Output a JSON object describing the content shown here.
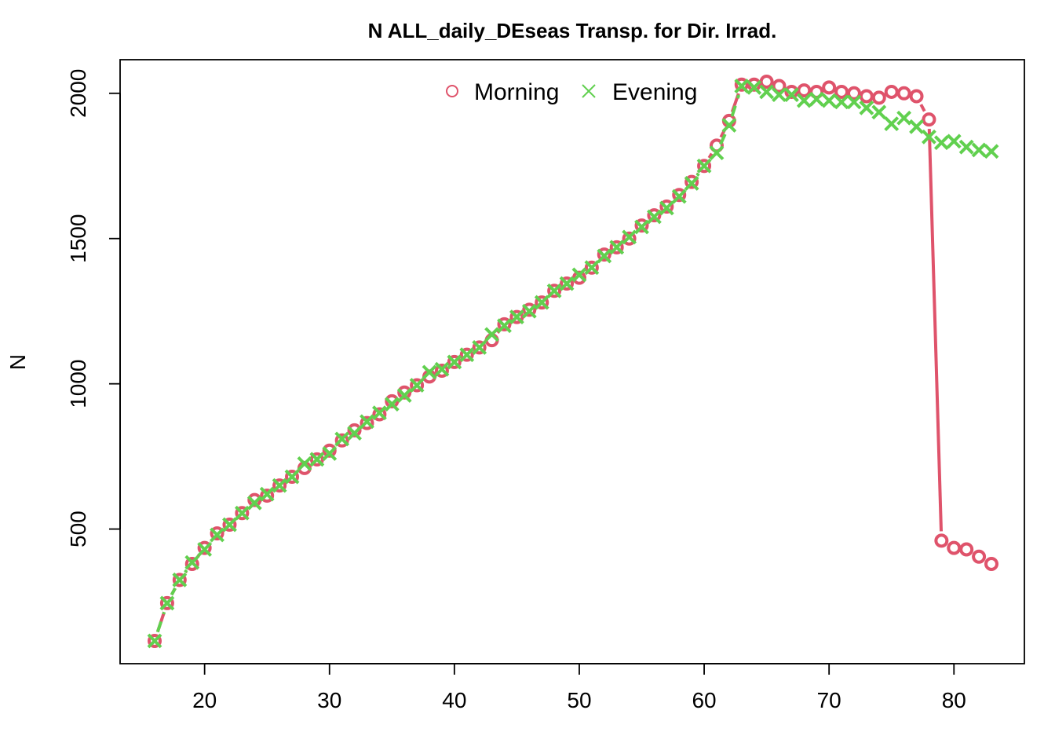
{
  "chart_data": {
    "type": "line",
    "title": "N ALL_daily_DEseas Transp. for Dir. Irrad.",
    "xlabel": "",
    "ylabel": "N",
    "xlim": [
      16,
      83
    ],
    "ylim": [
      115,
      2040
    ],
    "x_ticks": [
      20,
      30,
      40,
      50,
      60,
      70,
      80
    ],
    "y_ticks": [
      500,
      1000,
      1500,
      2000
    ],
    "legend_position": "top",
    "series": [
      {
        "name": "Morning",
        "color": "#DF536B",
        "marker": "circle",
        "line_style": "solid",
        "x": [
          16,
          17,
          18,
          19,
          20,
          21,
          22,
          23,
          24,
          25,
          26,
          27,
          28,
          29,
          30,
          31,
          32,
          33,
          34,
          35,
          36,
          37,
          38,
          39,
          40,
          41,
          42,
          43,
          44,
          45,
          46,
          47,
          48,
          49,
          50,
          51,
          52,
          53,
          54,
          55,
          56,
          57,
          58,
          59,
          60,
          61,
          62,
          63,
          64,
          65,
          66,
          67,
          68,
          69,
          70,
          71,
          72,
          73,
          74,
          75,
          76,
          77,
          78,
          79,
          80,
          81,
          82,
          83
        ],
        "y": [
          115,
          245,
          325,
          380,
          435,
          485,
          515,
          555,
          600,
          615,
          650,
          680,
          710,
          740,
          770,
          805,
          840,
          865,
          895,
          940,
          970,
          995,
          1025,
          1045,
          1075,
          1100,
          1125,
          1150,
          1205,
          1230,
          1255,
          1280,
          1320,
          1345,
          1365,
          1400,
          1445,
          1470,
          1500,
          1545,
          1580,
          1610,
          1650,
          1695,
          1750,
          1820,
          1905,
          2030,
          2030,
          2040,
          2025,
          2005,
          2010,
          2005,
          2020,
          2005,
          2000,
          1990,
          1985,
          2005,
          2000,
          1990,
          1910,
          460,
          435,
          430,
          405,
          380
        ]
      },
      {
        "name": "Evening",
        "color": "#61D04F",
        "marker": "x",
        "line_style": "dashed",
        "x": [
          16,
          17,
          18,
          19,
          20,
          21,
          22,
          23,
          24,
          25,
          26,
          27,
          28,
          29,
          30,
          31,
          32,
          33,
          34,
          35,
          36,
          37,
          38,
          39,
          40,
          41,
          42,
          43,
          44,
          45,
          46,
          47,
          48,
          49,
          50,
          51,
          52,
          53,
          54,
          55,
          56,
          57,
          58,
          59,
          60,
          61,
          62,
          63,
          64,
          65,
          66,
          67,
          68,
          69,
          70,
          71,
          72,
          73,
          74,
          75,
          76,
          77,
          78,
          79,
          80,
          81,
          82,
          83
        ],
        "y": [
          115,
          245,
          325,
          385,
          430,
          480,
          515,
          555,
          590,
          620,
          650,
          680,
          725,
          740,
          760,
          810,
          830,
          870,
          900,
          930,
          960,
          995,
          1040,
          1050,
          1075,
          1100,
          1125,
          1170,
          1200,
          1230,
          1250,
          1280,
          1320,
          1345,
          1375,
          1400,
          1440,
          1470,
          1505,
          1540,
          1575,
          1605,
          1645,
          1690,
          1750,
          1795,
          1890,
          2025,
          2020,
          2005,
          1995,
          1995,
          1975,
          1980,
          1975,
          1970,
          1970,
          1950,
          1935,
          1895,
          1915,
          1885,
          1850,
          1830,
          1835,
          1815,
          1805,
          1800
        ]
      }
    ]
  }
}
